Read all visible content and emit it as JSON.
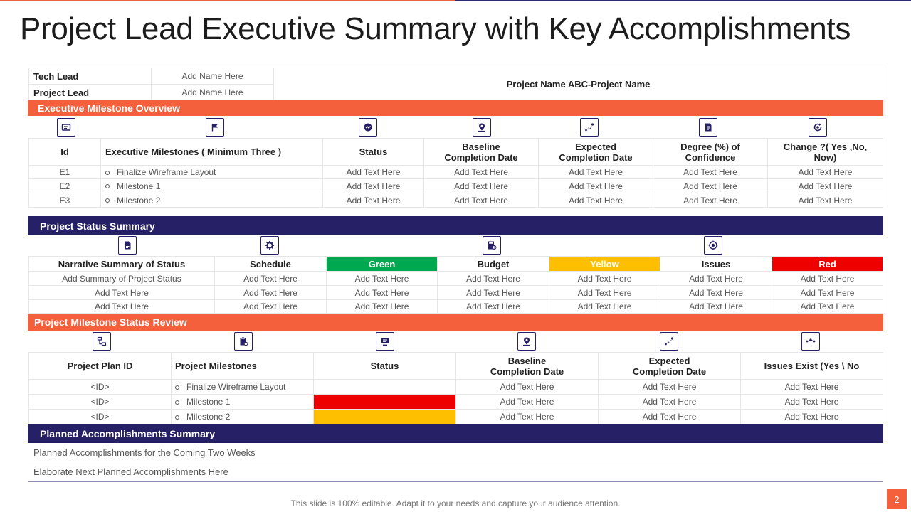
{
  "title": "Project Lead Executive Summary with Key Accomplishments",
  "header": {
    "tech_lead_label": "Tech Lead",
    "tech_lead_value": "Add Name Here",
    "project_lead_label": "Project Lead",
    "project_lead_value": "Add Name Here",
    "project_name": "Project Name  ABC-Project Name"
  },
  "milestone_overview": {
    "title": "Executive Milestone Overview",
    "icons": [
      "id-card-icon",
      "flag-icon",
      "status-gauge-icon",
      "location-pin-icon",
      "route-icon",
      "document-icon",
      "settings-cycle-icon"
    ],
    "headers": [
      "Id",
      "Executive Milestones  ( Minimum Three )",
      "Status",
      "Baseline Completion Date",
      "Expected Completion Date",
      "Degree (%) of Confidence",
      "Change ?( Yes ,No, Now)"
    ],
    "rows": [
      {
        "id": "E1",
        "milestone": "Finalize Wireframe Layout",
        "status": "Add Text Here",
        "baseline": "Add Text Here",
        "expected": "Add Text Here",
        "confidence": "Add Text Here",
        "change": "Add Text Here"
      },
      {
        "id": "E2",
        "milestone": "Milestone 1",
        "status": "Add Text Here",
        "baseline": "Add Text Here",
        "expected": "Add Text Here",
        "confidence": "Add Text Here",
        "change": "Add Text Here"
      },
      {
        "id": "E3",
        "milestone": "Milestone 2",
        "status": "Add Text Here",
        "baseline": "Add Text Here",
        "expected": "Add Text Here",
        "confidence": "Add Text Here",
        "change": "Add Text Here"
      }
    ]
  },
  "status_summary": {
    "title": "Project Status Summary",
    "headers": [
      "Narrative Summary of Status",
      "Schedule",
      "Green",
      "Budget",
      "Yellow",
      "Issues",
      "Red"
    ],
    "rows": [
      [
        "Add Summary of Project Status",
        "Add Text Here",
        "Add Text Here",
        "Add Text Here",
        "Add Text Here",
        "Add Text Here",
        "Add Text Here"
      ],
      [
        "Add Text Here",
        "Add Text Here",
        "Add Text Here",
        "Add Text Here",
        "Add Text Here",
        "Add Text Here",
        "Add Text Here"
      ],
      [
        "Add Text Here",
        "Add Text Here",
        "Add Text Here",
        "Add Text Here",
        "Add Text Here",
        "Add Text Here",
        "Add Text Here"
      ]
    ]
  },
  "milestone_review": {
    "title": "Project Milestone Status Review",
    "headers": [
      "Project Plan ID",
      "Project Milestones",
      "Status",
      "Baseline Completion Date",
      "Expected Completion Date",
      "Issues  Exist (Yes \\ No"
    ],
    "rows": [
      {
        "id": "<ID>",
        "milestone": "Finalize Wireframe Layout",
        "baseline": "Add Text Here",
        "expected": "Add Text Here",
        "issues": "Add Text Here"
      },
      {
        "id": "<ID>",
        "milestone": "Milestone 1",
        "baseline": "Add Text Here",
        "expected": "Add Text Here",
        "issues": "Add Text Here"
      },
      {
        "id": "<ID>",
        "milestone": "Milestone 2",
        "baseline": "Add Text Here",
        "expected": "Add Text Here",
        "issues": "Add Text Here"
      }
    ]
  },
  "accomplishments": {
    "title": "Planned Accomplishments  Summary",
    "line1": "Planned Accomplishments for the Coming Two Weeks",
    "line2": "Elaborate Next Planned Accomplishments Here"
  },
  "footer": "This slide is 100% editable. Adapt it to your needs and capture your audience attention.",
  "page_number": "2",
  "colors": {
    "orange": "#f4603c",
    "navy": "#262066",
    "green": "#00a94f",
    "yellow": "#fdbf00",
    "red": "#ee0000"
  }
}
